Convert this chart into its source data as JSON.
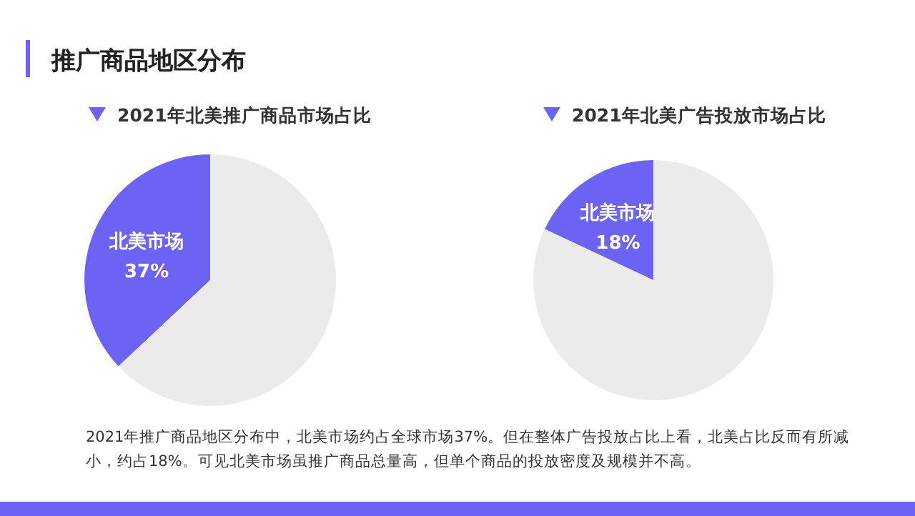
{
  "chart_data": [
    {
      "type": "other",
      "title": "推广商品地区分布",
      "annotations": [
        "2021年推广商品地区分布中，北美市场约占全球市场37%。但在整体广告投放占比上看，北美占比反而有所减小，约占18%。可见北美市场虽推广商品总量高，但单个商品的投放密度及规模并不高。"
      ]
    },
    {
      "type": "pie",
      "title": "2021年北美推广商品市场占比",
      "categories": [
        "北美市场",
        null
      ],
      "values": [
        37,
        63
      ],
      "colors": [
        "#6c63f5",
        "#ebebeb"
      ],
      "value_labels": [
        "37%",
        null
      ]
    },
    {
      "type": "pie",
      "title": "2021年北美广告投放市场占比",
      "categories": [
        "北美市场",
        null
      ],
      "values": [
        18,
        82
      ],
      "colors": [
        "#6c63f5",
        "#ebebeb"
      ],
      "value_labels": [
        "18%",
        null
      ]
    }
  ]
}
